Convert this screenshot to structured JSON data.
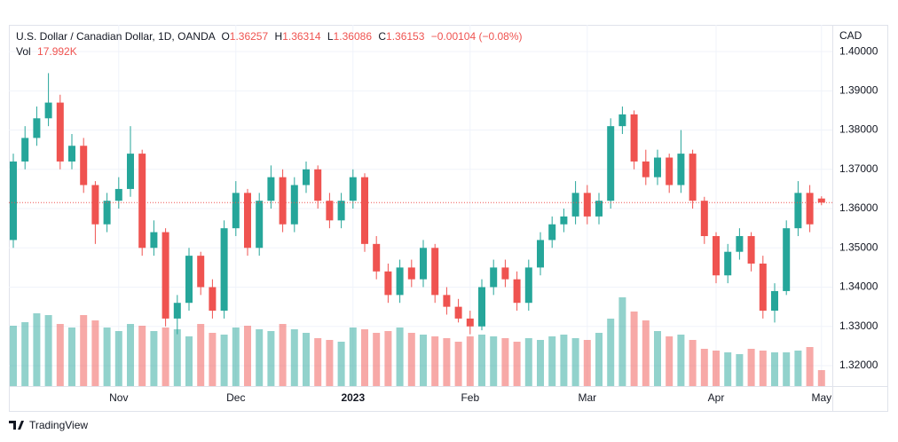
{
  "chart_data": {
    "type": "candlestick",
    "title": "U.S. Dollar / Canadian Dollar, 1D, OANDA",
    "ohlc_letters": [
      "O",
      "H",
      "L",
      "C"
    ],
    "change": "−0.00104 (−0.08%)",
    "volume_title": "Vol",
    "last_volume_label": "17.992K",
    "y_axis_label": "CAD",
    "footer": "TradingView",
    "up_color": "#26a69a",
    "down_color": "#ef5350",
    "grid": true,
    "categories": [
      null,
      null,
      null,
      null,
      null,
      null,
      null,
      null,
      null,
      "Nov",
      null,
      null,
      null,
      null,
      null,
      null,
      null,
      null,
      null,
      "Dec",
      null,
      null,
      null,
      null,
      null,
      null,
      null,
      null,
      null,
      "2023",
      null,
      null,
      null,
      null,
      null,
      null,
      null,
      null,
      null,
      "Feb",
      null,
      null,
      null,
      null,
      null,
      null,
      null,
      null,
      null,
      "Mar",
      null,
      null,
      null,
      null,
      null,
      null,
      null,
      null,
      null,
      null,
      "Apr",
      null,
      null,
      null,
      null,
      null,
      null,
      null,
      null,
      "May"
    ],
    "open": [
      1.352,
      1.372,
      1.378,
      1.383,
      1.387,
      1.372,
      1.376,
      1.366,
      1.356,
      1.362,
      1.365,
      1.374,
      1.35,
      1.354,
      1.332,
      1.336,
      1.348,
      1.34,
      1.334,
      1.355,
      1.364,
      1.35,
      1.362,
      1.368,
      1.356,
      1.366,
      1.37,
      1.362,
      1.357,
      1.362,
      1.368,
      1.351,
      1.344,
      1.338,
      1.345,
      1.342,
      1.35,
      1.338,
      1.335,
      1.332,
      1.33,
      1.34,
      1.345,
      1.342,
      1.336,
      1.345,
      1.352,
      1.356,
      1.358,
      1.364,
      1.358,
      1.362,
      1.381,
      1.384,
      1.372,
      1.368,
      1.373,
      1.366,
      1.374,
      1.362,
      1.353,
      1.343,
      1.349,
      1.353,
      1.346,
      1.334,
      1.339,
      1.355,
      1.364,
      1.36257
    ],
    "high": [
      1.374,
      1.381,
      1.386,
      1.3945,
      1.389,
      1.379,
      1.378,
      1.367,
      1.364,
      1.368,
      1.381,
      1.375,
      1.357,
      1.355,
      1.338,
      1.35,
      1.349,
      1.342,
      1.357,
      1.367,
      1.365,
      1.364,
      1.371,
      1.37,
      1.368,
      1.372,
      1.371,
      1.364,
      1.364,
      1.37,
      1.369,
      1.353,
      1.346,
      1.347,
      1.347,
      1.352,
      1.351,
      1.34,
      1.337,
      1.334,
      1.342,
      1.347,
      1.347,
      1.344,
      1.347,
      1.354,
      1.358,
      1.36,
      1.367,
      1.366,
      1.364,
      1.383,
      1.386,
      1.385,
      1.375,
      1.375,
      1.374,
      1.38,
      1.375,
      1.363,
      1.354,
      1.351,
      1.355,
      1.354,
      1.348,
      1.341,
      1.357,
      1.367,
      1.366,
      1.36314
    ],
    "low": [
      1.35,
      1.37,
      1.376,
      1.381,
      1.37,
      1.37,
      1.364,
      1.351,
      1.354,
      1.36,
      1.363,
      1.348,
      1.348,
      1.33,
      1.328,
      1.334,
      1.338,
      1.332,
      1.332,
      1.353,
      1.348,
      1.348,
      1.36,
      1.354,
      1.354,
      1.364,
      1.36,
      1.355,
      1.355,
      1.36,
      1.349,
      1.342,
      1.336,
      1.336,
      1.34,
      1.34,
      1.336,
      1.333,
      1.331,
      1.328,
      1.329,
      1.338,
      1.34,
      1.334,
      1.334,
      1.343,
      1.35,
      1.354,
      1.356,
      1.356,
      1.356,
      1.36,
      1.379,
      1.37,
      1.366,
      1.366,
      1.364,
      1.364,
      1.36,
      1.351,
      1.341,
      1.341,
      1.347,
      1.344,
      1.332,
      1.331,
      1.338,
      1.353,
      1.354,
      1.36086
    ],
    "close": [
      1.372,
      1.378,
      1.383,
      1.387,
      1.372,
      1.376,
      1.366,
      1.356,
      1.362,
      1.365,
      1.374,
      1.35,
      1.354,
      1.332,
      1.336,
      1.348,
      1.34,
      1.334,
      1.355,
      1.364,
      1.35,
      1.362,
      1.368,
      1.356,
      1.366,
      1.37,
      1.362,
      1.357,
      1.362,
      1.368,
      1.351,
      1.344,
      1.338,
      1.345,
      1.342,
      1.35,
      1.338,
      1.335,
      1.332,
      1.33,
      1.34,
      1.345,
      1.342,
      1.336,
      1.345,
      1.352,
      1.356,
      1.358,
      1.364,
      1.358,
      1.362,
      1.381,
      1.384,
      1.372,
      1.368,
      1.373,
      1.366,
      1.374,
      1.362,
      1.353,
      1.343,
      1.349,
      1.353,
      1.346,
      1.334,
      1.339,
      1.355,
      1.364,
      1.356,
      1.36153
    ],
    "volume": [
      68000,
      72000,
      82000,
      80000,
      70000,
      66000,
      80000,
      74000,
      66000,
      62000,
      70000,
      68000,
      62000,
      66000,
      64000,
      56000,
      70000,
      60000,
      58000,
      66000,
      68000,
      64000,
      62000,
      70000,
      64000,
      60000,
      54000,
      52000,
      50000,
      66000,
      64000,
      60000,
      62000,
      66000,
      60000,
      58000,
      56000,
      54000,
      50000,
      56000,
      58000,
      56000,
      54000,
      50000,
      54000,
      52000,
      56000,
      58000,
      54000,
      52000,
      60000,
      76000,
      100000,
      84000,
      74000,
      62000,
      56000,
      58000,
      52000,
      42000,
      40000,
      38000,
      36000,
      42000,
      40000,
      38000,
      38000,
      40000,
      44000,
      17992
    ],
    "volume_ylim": [
      0,
      407000
    ],
    "ylim": [
      1.3148,
      1.4068
    ],
    "yticks": [
      {
        "value": 1.32,
        "label": "1.32000"
      },
      {
        "value": 1.33,
        "label": "1.33000"
      },
      {
        "value": 1.34,
        "label": "1.34000"
      },
      {
        "value": 1.35,
        "label": "1.35000"
      },
      {
        "value": 1.36,
        "label": "1.36000"
      },
      {
        "value": 1.37,
        "label": "1.37000"
      },
      {
        "value": 1.38,
        "label": "1.38000"
      },
      {
        "value": 1.39,
        "label": "1.39000"
      },
      {
        "value": 1.4,
        "label": "1.40000"
      }
    ]
  }
}
